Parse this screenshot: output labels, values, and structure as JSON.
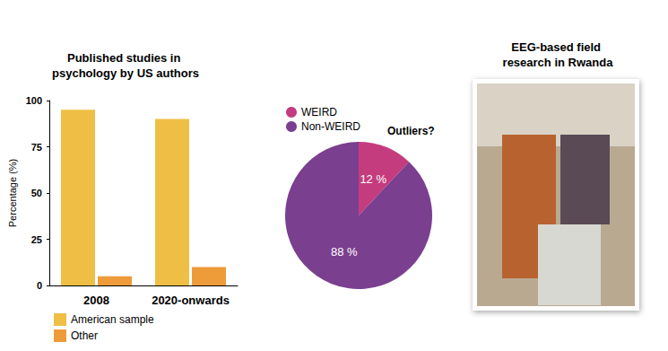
{
  "chart_data": [
    {
      "type": "bar",
      "title": "Published studies in psychology by US authors",
      "y_label": "Percentage (%)",
      "categories": [
        "2008",
        "2020-onwards"
      ],
      "series": [
        {
          "name": "American sample",
          "color": "#efbf45",
          "values": [
            95,
            90
          ]
        },
        {
          "name": "Other",
          "color": "#ee9b3a",
          "values": [
            5,
            10
          ]
        }
      ],
      "ylim": [
        0,
        100
      ],
      "yticks": [
        0,
        25,
        50,
        75,
        100
      ],
      "grid": false,
      "legend": "bottom-left"
    },
    {
      "type": "pie",
      "annotation": "Outliers?",
      "categories": [
        "WEIRD",
        "Non-WEIRD"
      ],
      "values": [
        12,
        88
      ],
      "value_labels": [
        "12 %",
        "88 %"
      ],
      "colors": [
        "#c43c7e",
        "#7b3f8f"
      ],
      "data_labels": true,
      "legend": "top-left"
    }
  ],
  "photo": {
    "title": "EEG-based field research in Rwanda"
  }
}
